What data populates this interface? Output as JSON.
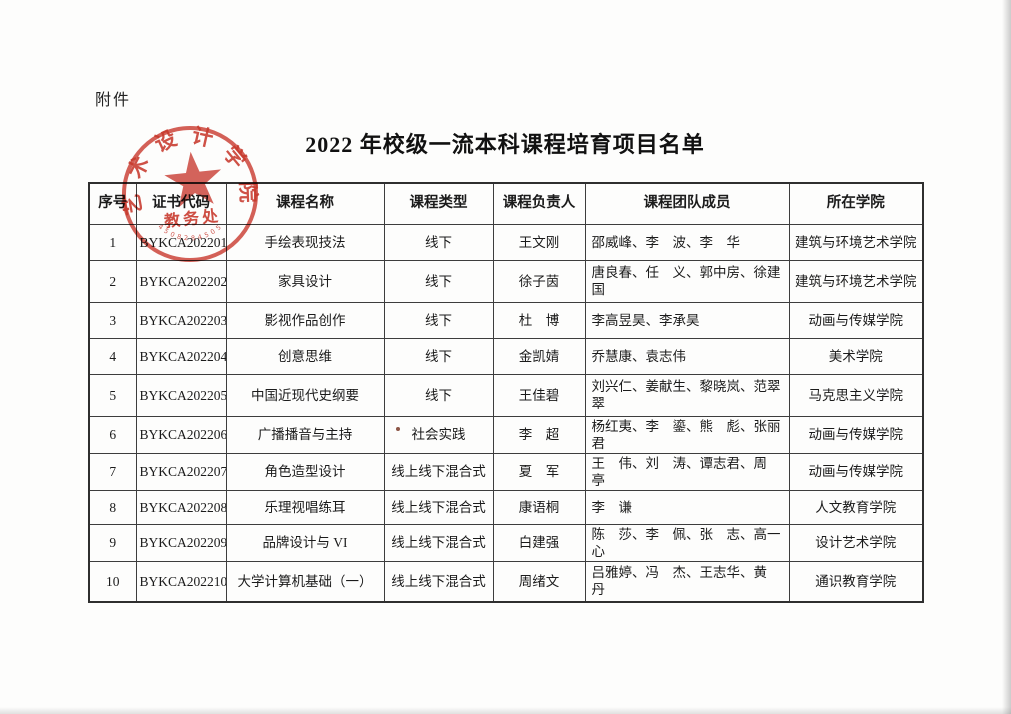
{
  "page": {
    "attachment_label": "附件",
    "title": "2022 年校级一流本科课程培育项目名单"
  },
  "stamp": {
    "arc_text": "艺术设计学院",
    "office_text": "教务处",
    "serial_text": "4508284505",
    "color": "#c5291d"
  },
  "table": {
    "headers": [
      "序号",
      "证书代码",
      "课程名称",
      "课程类型",
      "课程负责人",
      "课程团队成员",
      "所在学院"
    ],
    "rows": [
      {
        "no": "1",
        "code": "BYKCA202201",
        "course": "手绘表现技法",
        "type": "线下",
        "leader": "王文刚",
        "team": "邵威峰、李　波、李　华",
        "college": "建筑与环境艺术学院"
      },
      {
        "no": "2",
        "code": "BYKCA202202",
        "course": "家具设计",
        "type": "线下",
        "leader": "徐子茵",
        "team": "唐良春、任　义、郭中房、徐建国",
        "college": "建筑与环境艺术学院"
      },
      {
        "no": "3",
        "code": "BYKCA202203",
        "course": "影视作品创作",
        "type": "线下",
        "leader": "杜　博",
        "team": "李高昱昊、李承昊",
        "college": "动画与传媒学院"
      },
      {
        "no": "4",
        "code": "BYKCA202204",
        "course": "创意思维",
        "type": "线下",
        "leader": "金凯婧",
        "team": "乔慧康、袁志伟",
        "college": "美术学院"
      },
      {
        "no": "5",
        "code": "BYKCA202205",
        "course": "中国近现代史纲要",
        "type": "线下",
        "leader": "王佳碧",
        "team": "刘兴仁、姜献生、黎晓岚、范翠翠",
        "college": "马克思主义学院"
      },
      {
        "no": "6",
        "code": "BYKCA202206",
        "course": "广播播音与主持",
        "type": "社会实践",
        "leader": "李　超",
        "team": "杨红夷、李　鎏、熊　彪、张丽君",
        "college": "动画与传媒学院"
      },
      {
        "no": "7",
        "code": "BYKCA202207",
        "course": "角色造型设计",
        "type": "线上线下混合式",
        "leader": "夏　军",
        "team": "王　伟、刘　涛、谭志君、周　亭",
        "college": "动画与传媒学院"
      },
      {
        "no": "8",
        "code": "BYKCA202208",
        "course": "乐理视唱练耳",
        "type": "线上线下混合式",
        "leader": "康语桐",
        "team": "李　谦",
        "college": "人文教育学院"
      },
      {
        "no": "9",
        "code": "BYKCA202209",
        "course": "品牌设计与 VI",
        "type": "线上线下混合式",
        "leader": "白建强",
        "team": "陈　莎、李　佩、张　志、高一心",
        "college": "设计艺术学院"
      },
      {
        "no": "10",
        "code": "BYKCA202210",
        "course": "大学计算机基础（一）",
        "type": "线上线下混合式",
        "leader": "周绪文",
        "team": "吕雅婷、冯　杰、王志华、黄　丹",
        "college": "通识教育学院"
      }
    ]
  }
}
